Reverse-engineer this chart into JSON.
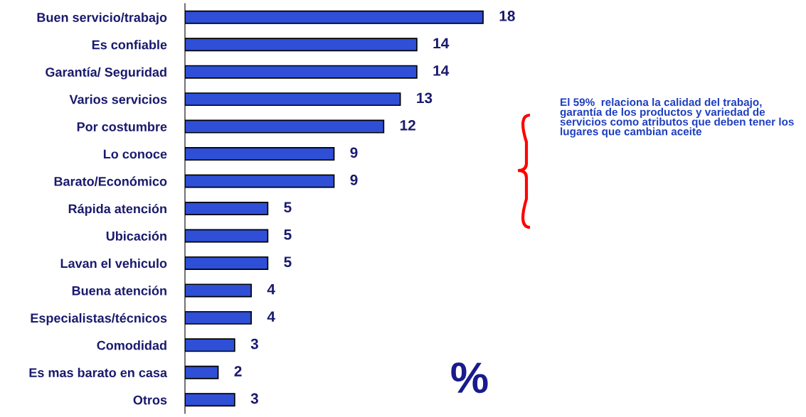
{
  "chart_data": {
    "type": "bar",
    "orientation": "horizontal",
    "categories": [
      "Buen servicio/trabajo",
      "Es confiable",
      "Garantía/ Seguridad",
      "Varios servicios",
      "Por costumbre",
      "Lo conoce",
      "Barato/Económico",
      "Rápida atención",
      "Ubicación",
      "Lavan el vehiculo",
      "Buena atención",
      "Especialistas/técnicos",
      "Comodidad",
      "Es mas barato en casa",
      "Otros"
    ],
    "values": [
      18,
      14,
      14,
      13,
      12,
      9,
      9,
      5,
      5,
      5,
      4,
      4,
      3,
      2,
      3
    ],
    "color": "#2e4fd6",
    "data_labels": true,
    "grid": false,
    "legend": false,
    "annotations": [
      "El 59%  relaciona la calidad del trabajo, garantía de los productos y variedad de servicios como atributos que deben tener los lugares que cambian aceite",
      "%"
    ]
  }
}
